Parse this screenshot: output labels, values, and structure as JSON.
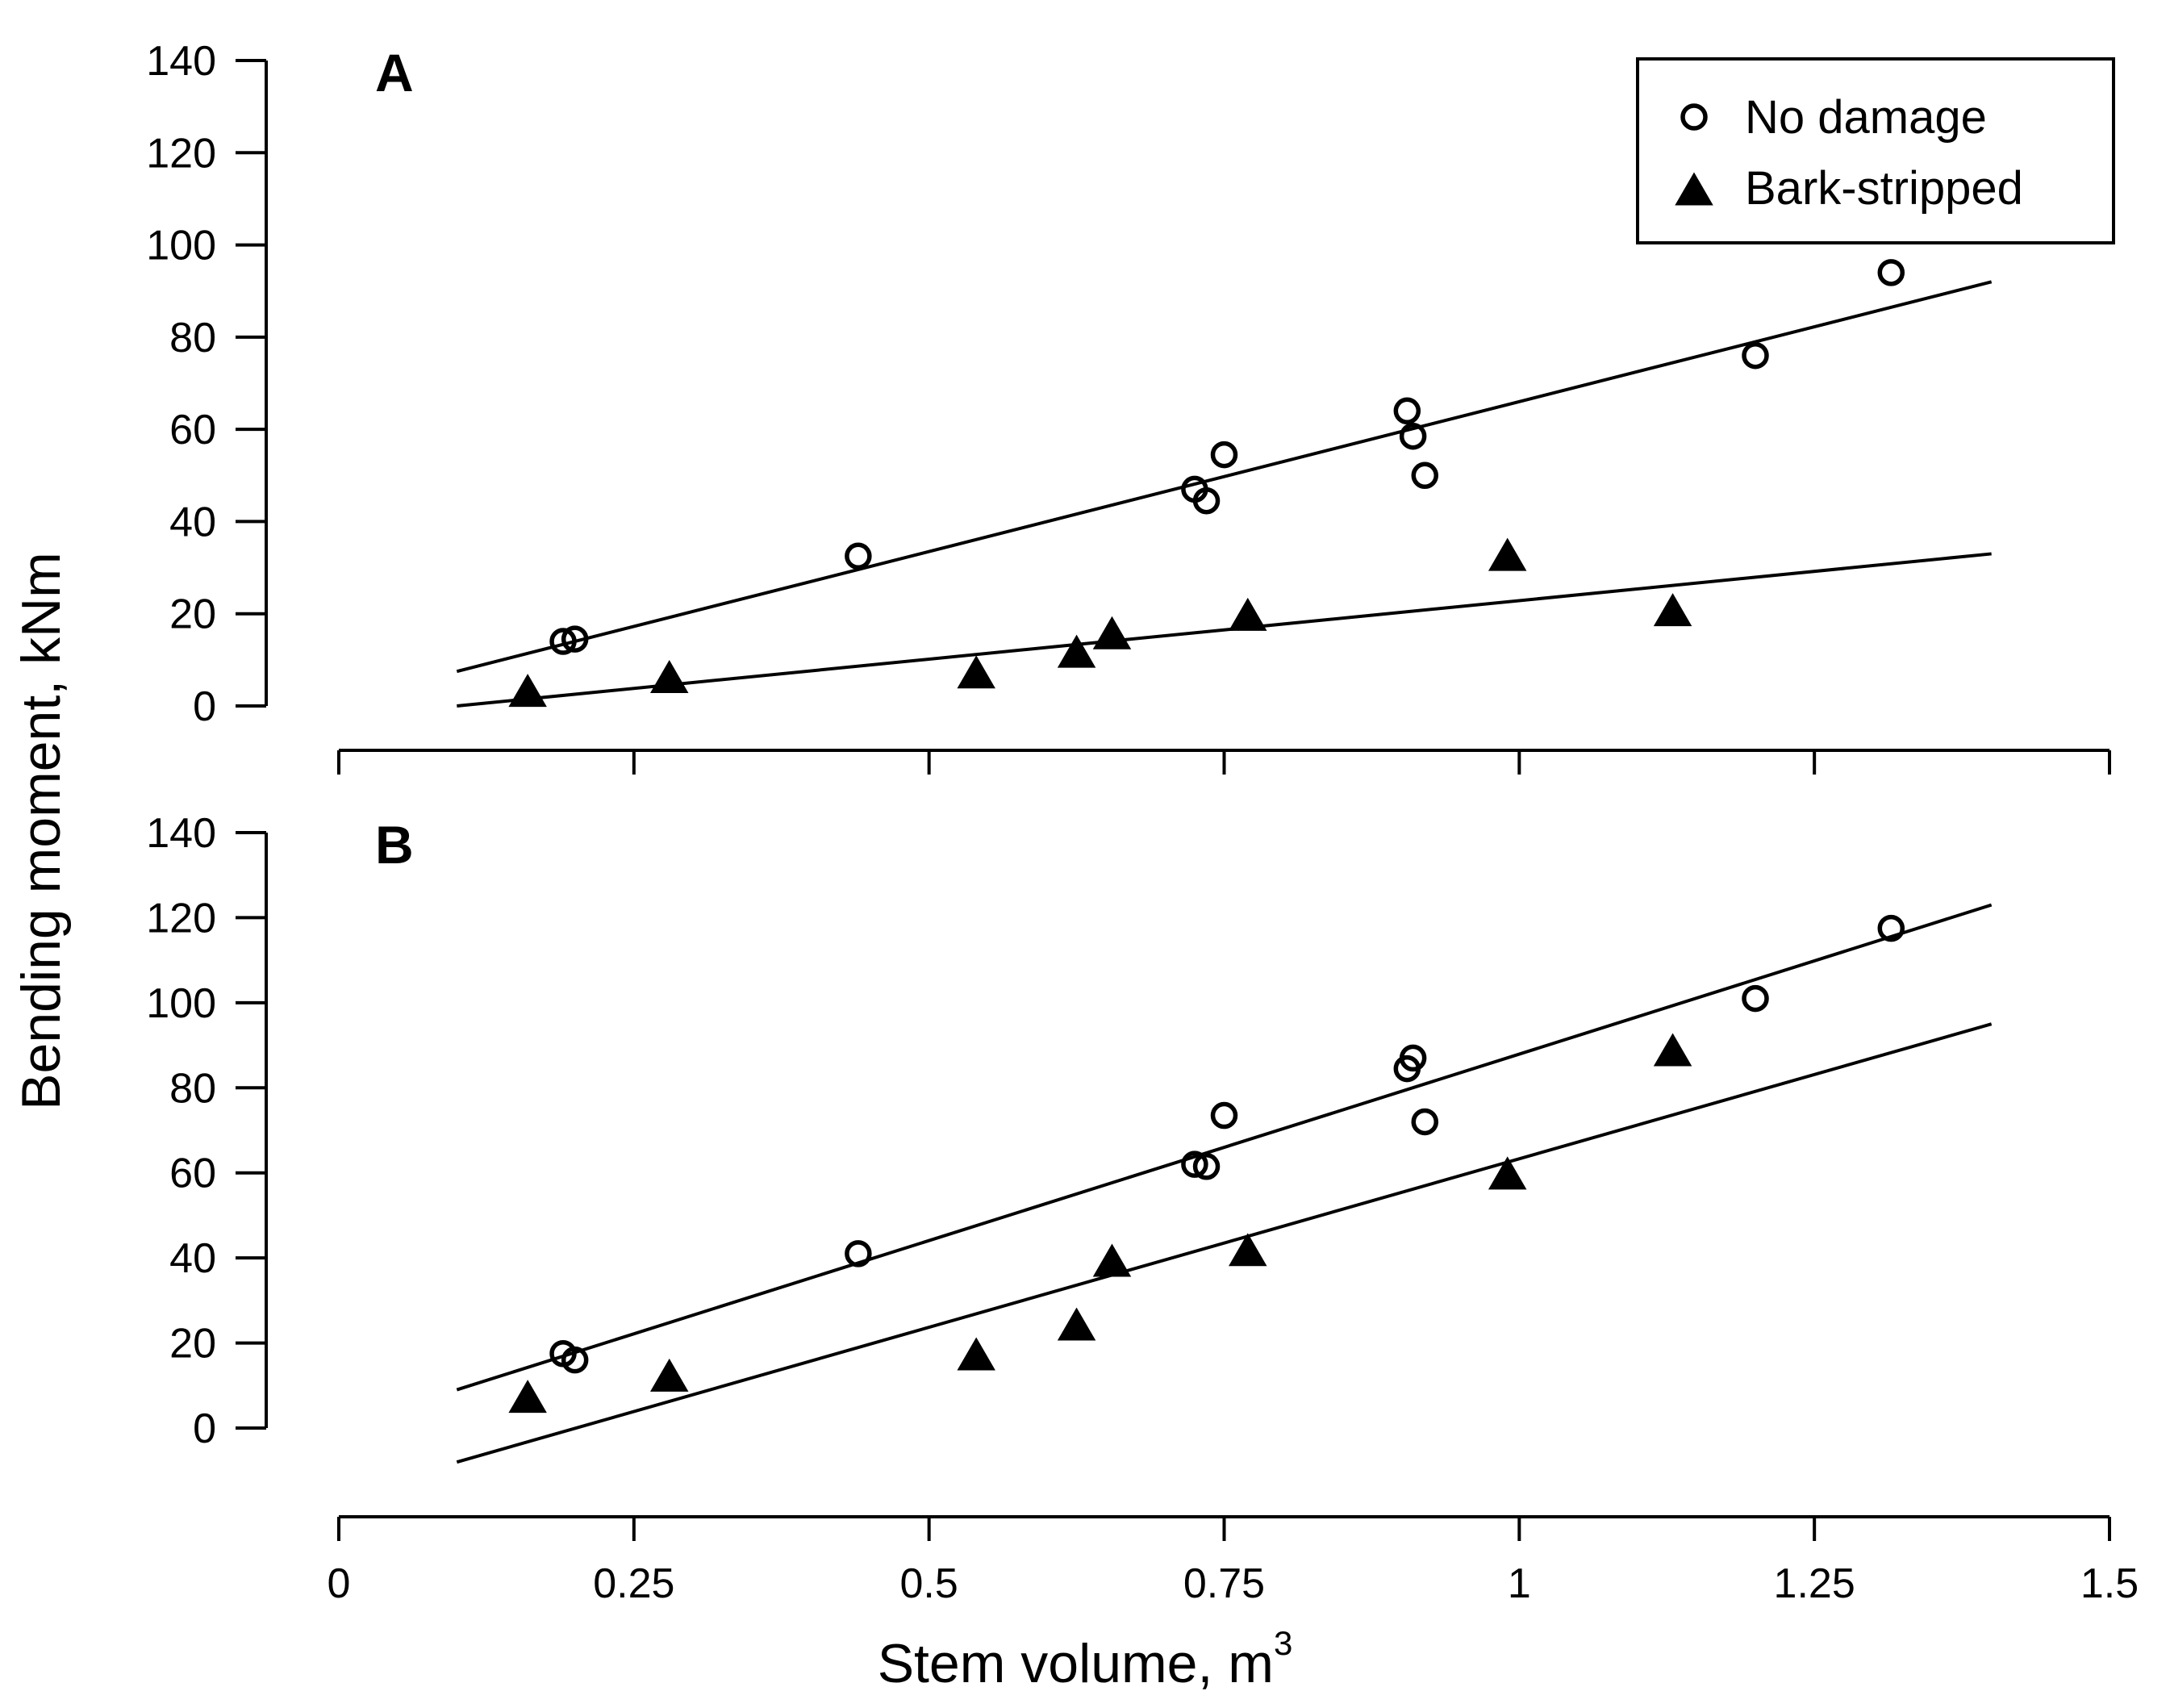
{
  "chart_data": {
    "type": "scatter",
    "shared": {
      "xlabel": "Stem volume, m",
      "xlabel_superscript": "3",
      "ylabel": "Bending moment, kNm",
      "xlim": [
        0,
        1.5
      ],
      "x_ticks": [
        0,
        0.25,
        0.5,
        0.75,
        1,
        1.25,
        1.5
      ],
      "x_tick_labels": [
        "0",
        "0.25",
        "0.5",
        "0.75",
        "1",
        "1.25",
        "1.5"
      ],
      "legend": {
        "placement": "top-right of panel A",
        "entries": [
          {
            "label": "No damage",
            "marker": "open-circle"
          },
          {
            "label": "Bark-stripped",
            "marker": "filled-triangle"
          }
        ]
      }
    },
    "panels": [
      {
        "label": "A",
        "ylim": [
          0,
          140
        ],
        "y_ticks": [
          0,
          20,
          40,
          60,
          80,
          100,
          120,
          140
        ],
        "series": [
          {
            "name": "No damage",
            "marker": "open-circle",
            "points": [
              [
                0.19,
                14
              ],
              [
                0.2,
                14.5
              ],
              [
                0.44,
                32.5
              ],
              [
                0.725,
                47
              ],
              [
                0.735,
                44.5
              ],
              [
                0.75,
                54.5
              ],
              [
                0.905,
                64
              ],
              [
                0.91,
                58.5
              ],
              [
                0.92,
                50
              ],
              [
                1.2,
                76
              ],
              [
                1.315,
                94
              ]
            ],
            "fit_line": {
              "x": [
                0.1,
                1.4
              ],
              "y": [
                7.5,
                92
              ]
            }
          },
          {
            "name": "Bark-stripped",
            "marker": "filled-triangle",
            "points": [
              [
                0.16,
                2.5
              ],
              [
                0.28,
                5.5
              ],
              [
                0.54,
                6.5
              ],
              [
                0.625,
                11
              ],
              [
                0.655,
                15
              ],
              [
                0.77,
                19
              ],
              [
                0.99,
                32
              ],
              [
                1.13,
                20
              ]
            ],
            "fit_line": {
              "x": [
                0.1,
                1.4
              ],
              "y": [
                0,
                33
              ]
            }
          }
        ]
      },
      {
        "label": "B",
        "ylim": [
          0,
          140
        ],
        "y_ticks": [
          0,
          20,
          40,
          60,
          80,
          100,
          120,
          140
        ],
        "series": [
          {
            "name": "No damage",
            "marker": "open-circle",
            "points": [
              [
                0.19,
                17.5
              ],
              [
                0.2,
                16
              ],
              [
                0.44,
                41
              ],
              [
                0.725,
                62
              ],
              [
                0.735,
                61.5
              ],
              [
                0.75,
                73.5
              ],
              [
                0.905,
                84.5
              ],
              [
                0.91,
                87
              ],
              [
                0.92,
                72
              ],
              [
                1.2,
                101
              ],
              [
                1.315,
                117.5
              ]
            ],
            "fit_line": {
              "x": [
                0.1,
                1.4
              ],
              "y": [
                9,
                123
              ]
            }
          },
          {
            "name": "Bark-stripped",
            "marker": "filled-triangle",
            "points": [
              [
                0.16,
                6.5
              ],
              [
                0.28,
                11.5
              ],
              [
                0.54,
                16.5
              ],
              [
                0.625,
                23.5
              ],
              [
                0.655,
                38.5
              ],
              [
                0.77,
                41
              ],
              [
                0.99,
                59
              ],
              [
                1.13,
                88
              ]
            ],
            "fit_line": {
              "x": [
                0.1,
                1.4
              ],
              "y": [
                -8,
                95
              ]
            }
          }
        ]
      }
    ]
  }
}
